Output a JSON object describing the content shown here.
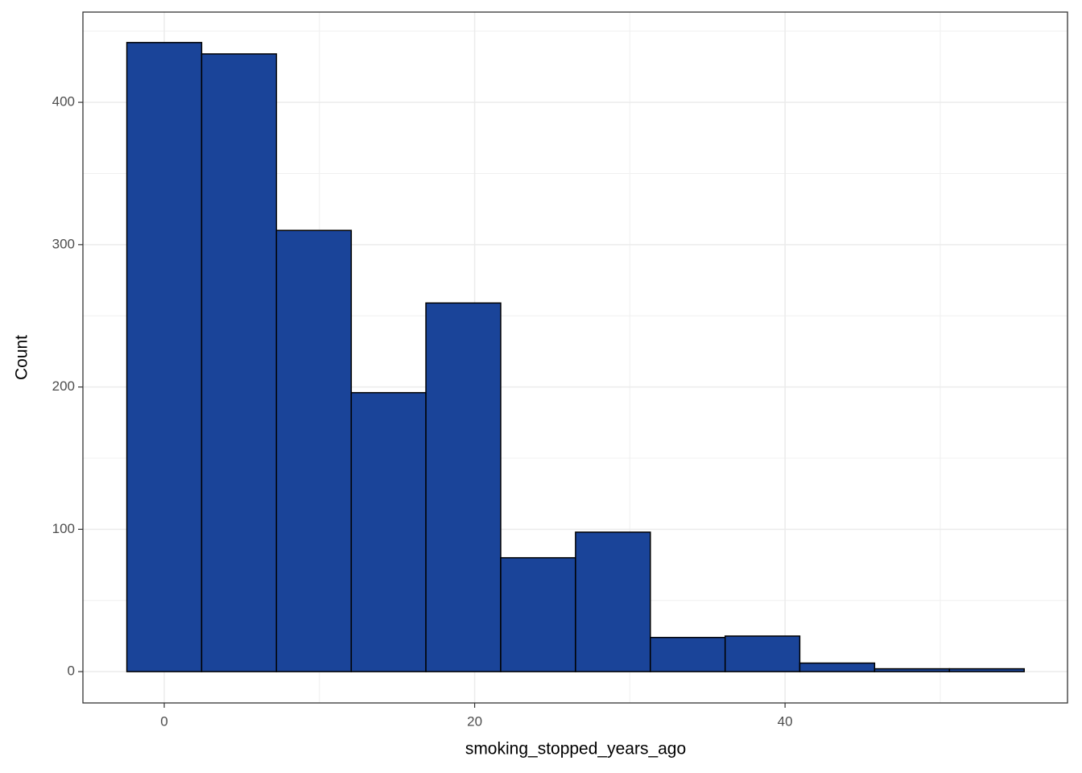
{
  "chart_data": {
    "type": "histogram",
    "x_label": "smoking_stopped_years_ago",
    "y_label": "Count",
    "bins": [
      -2.41,
      2.41,
      7.23,
      12.05,
      16.86,
      21.68,
      26.5,
      31.32,
      36.14,
      40.95,
      45.77,
      50.59,
      55.41
    ],
    "counts": [
      442,
      434,
      310,
      196,
      259,
      80,
      98,
      24,
      25,
      6,
      2,
      2
    ],
    "color": "#1a4499",
    "edge_color": "#000000",
    "xlim": [
      -5.24,
      58.2
    ],
    "ylim": [
      -22,
      463.4
    ],
    "xticks": [
      0,
      20,
      40
    ],
    "yticks": [
      0,
      100,
      200,
      300,
      400
    ],
    "grid": true,
    "minor_grid": true
  }
}
